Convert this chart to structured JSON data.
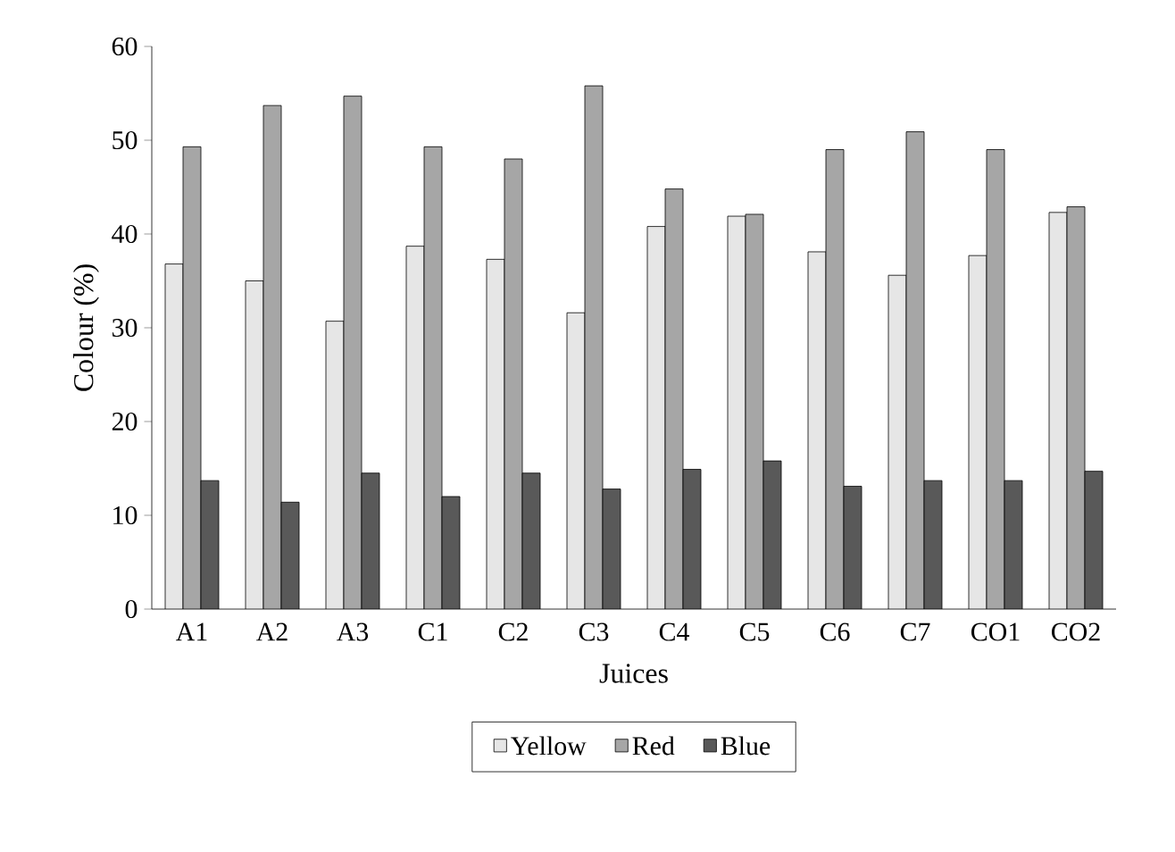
{
  "chart_data": {
    "type": "bar",
    "xlabel": "Juices",
    "ylabel": "Colour (%)",
    "categories": [
      "A1",
      "A2",
      "A3",
      "C1",
      "C2",
      "C3",
      "C4",
      "C5",
      "C6",
      "C7",
      "CO1",
      "CO2"
    ],
    "series": [
      {
        "name": "Yellow",
        "color": "#e6e6e6",
        "values": [
          36.8,
          35.0,
          30.7,
          38.7,
          37.3,
          31.6,
          40.8,
          41.9,
          38.1,
          35.6,
          37.7,
          42.3
        ]
      },
      {
        "name": "Red",
        "color": "#a6a6a6",
        "values": [
          49.3,
          53.7,
          54.7,
          49.3,
          48.0,
          55.8,
          44.8,
          42.1,
          49.0,
          50.9,
          49.0,
          42.9
        ]
      },
      {
        "name": "Blue",
        "color": "#595959",
        "values": [
          13.7,
          11.4,
          14.5,
          12.0,
          14.5,
          12.8,
          14.9,
          15.8,
          13.1,
          13.7,
          13.7,
          14.7
        ]
      }
    ],
    "ylim": [
      0,
      60
    ],
    "yticks": [
      0,
      10,
      20,
      30,
      40,
      50,
      60
    ],
    "grid": false,
    "legend": "bottom"
  }
}
